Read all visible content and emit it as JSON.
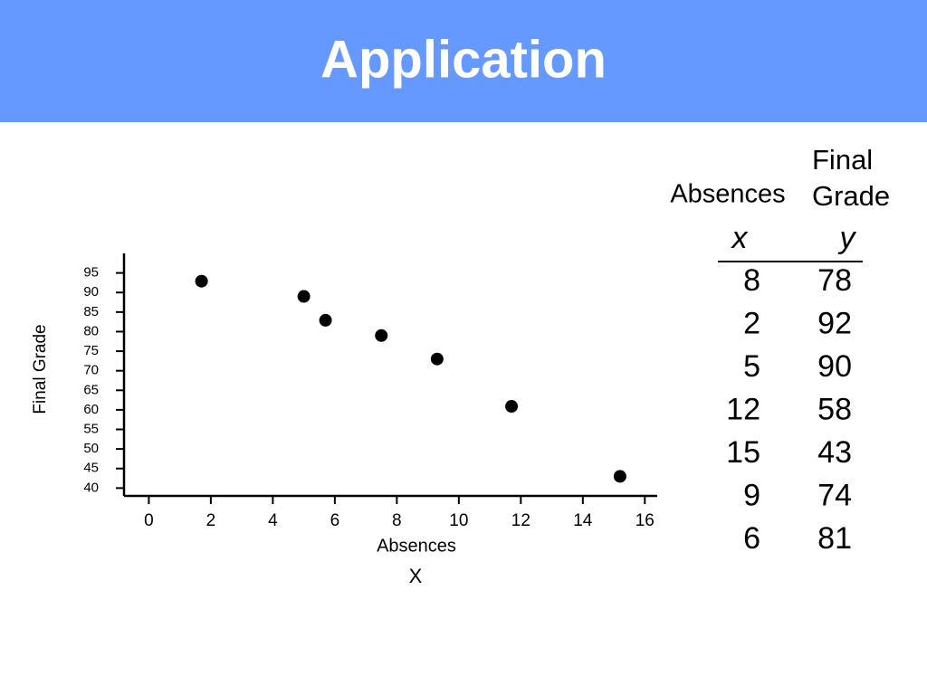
{
  "header": {
    "title": "Application"
  },
  "chart_data": {
    "type": "scatter",
    "xlabel": "Absences",
    "xlabel_symbol": "X",
    "ylabel": "Final Grade",
    "x": [
      1.7,
      5.0,
      5.7,
      7.5,
      9.3,
      11.7,
      15.2
    ],
    "values": [
      92.9,
      89,
      82.9,
      79,
      73,
      60.9,
      43
    ],
    "color": "#000000",
    "xlim": [
      -0.8,
      16.4
    ],
    "xticks": [
      0,
      2,
      4,
      6,
      8,
      10,
      12,
      14,
      16
    ],
    "ylim": [
      38,
      100
    ],
    "yticks": [
      40,
      45,
      50,
      55,
      60,
      65,
      70,
      75,
      80,
      85,
      90,
      95
    ],
    "grid": false
  },
  "table": {
    "headers": [
      "Absences",
      "Final Grade"
    ],
    "symbols": [
      "x",
      "y"
    ],
    "rows": [
      [
        8,
        78
      ],
      [
        2,
        92
      ],
      [
        5,
        90
      ],
      [
        12,
        58
      ],
      [
        15,
        43
      ],
      [
        9,
        74
      ],
      [
        6,
        81
      ]
    ]
  }
}
